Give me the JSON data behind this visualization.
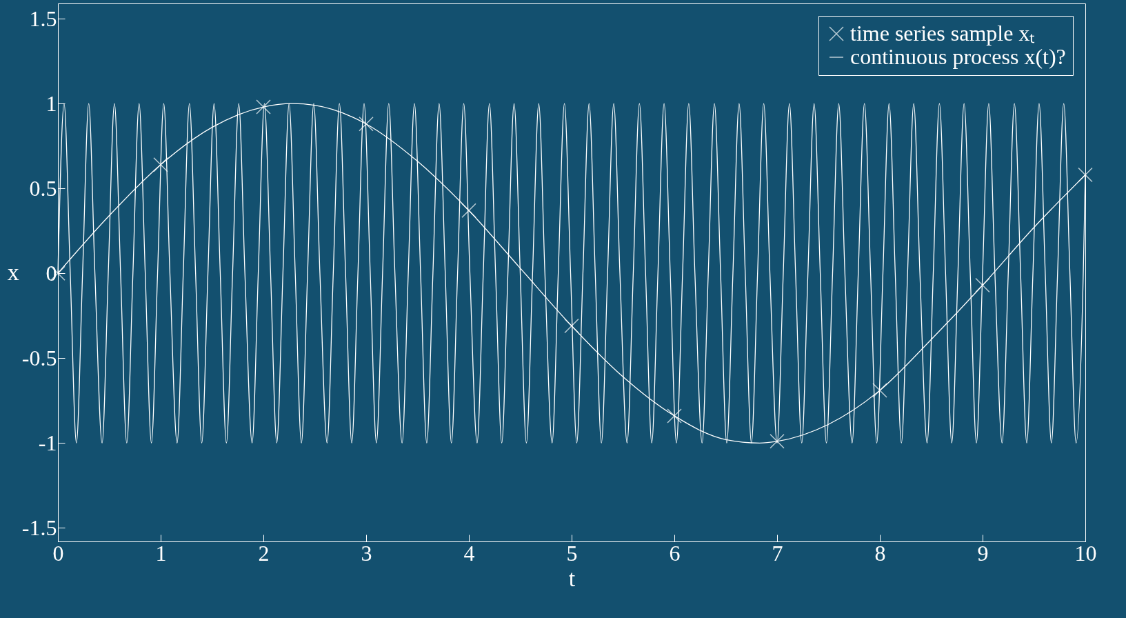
{
  "chart_data": {
    "type": "line",
    "xlabel": "t",
    "ylabel": "x",
    "xlim": [
      0,
      10
    ],
    "ylim": [
      -1.58,
      1.59
    ],
    "xticks": [
      0,
      1,
      2,
      3,
      4,
      5,
      6,
      7,
      8,
      9,
      10
    ],
    "yticks": [
      -1.5,
      -1,
      -0.5,
      0,
      0.5,
      1,
      1.5
    ],
    "grid": false,
    "legend": "top right",
    "series": [
      {
        "name": "time series sample xₜ",
        "type": "scatter",
        "marker": "cross",
        "color": "#ffffff",
        "x": [
          0,
          1,
          2,
          3,
          4,
          5,
          6,
          7,
          8,
          9,
          10
        ],
        "values": [
          0,
          0.64,
          0.98,
          0.88,
          0.37,
          -0.31,
          -0.84,
          -0.99,
          -0.69,
          -0.07,
          0.58
        ]
      },
      {
        "name": "continuous process x(t)?",
        "color": "#ffffff",
        "x": [
          0,
          0.06,
          0.12,
          0.18,
          0.24,
          0.3,
          0.36,
          0.43,
          0.49,
          0.55,
          0.61,
          0.67,
          0.73,
          0.79,
          0.85,
          0.91,
          0.97,
          1.03,
          1.09,
          1.16,
          1.22,
          1.28,
          1.34,
          1.4,
          1.46,
          1.52,
          1.58,
          1.64,
          1.7,
          1.76,
          1.82,
          1.89,
          1.95,
          2.01,
          2.07,
          2.13,
          2.19,
          2.25,
          2.31,
          2.37,
          2.43,
          2.49,
          2.55,
          2.62,
          2.68,
          2.74,
          2.8,
          2.86,
          2.92,
          2.98,
          3.04,
          3.1,
          3.16,
          3.22,
          3.28,
          3.35,
          3.41,
          3.47,
          3.53,
          3.59,
          3.65,
          3.71,
          3.77,
          3.83,
          3.89,
          3.95,
          4.01,
          4.08,
          4.14,
          4.2,
          4.26,
          4.32,
          4.38,
          4.44,
          4.5,
          4.56,
          4.62,
          4.68,
          4.74,
          4.81,
          4.87,
          4.93,
          4.99,
          5.05,
          5.11,
          5.17,
          5.23,
          5.29,
          5.35,
          5.41,
          5.47,
          5.54,
          5.6,
          5.66,
          5.72,
          5.78,
          5.84,
          5.9,
          5.96,
          6.02,
          6.08,
          6.14,
          6.2,
          6.27,
          6.33,
          6.39,
          6.45,
          6.51,
          6.57,
          6.63,
          6.69,
          6.75,
          6.81,
          6.87,
          6.93,
          7.0,
          7.06,
          7.12,
          7.18,
          7.24,
          7.3,
          7.36,
          7.42,
          7.48,
          7.54,
          7.6,
          7.66,
          7.73,
          7.79,
          7.85,
          7.91,
          7.97,
          8.03,
          8.09,
          8.15,
          8.21,
          8.27,
          8.33,
          8.39,
          8.46,
          8.52,
          8.58,
          8.64,
          8.7,
          8.76,
          8.82,
          8.88,
          8.94,
          9.0,
          9.06,
          9.12,
          9.19,
          9.25,
          9.31,
          9.37,
          9.43,
          9.49,
          9.55,
          9.61,
          9.67,
          9.73,
          9.79,
          9.85,
          9.91,
          9.98,
          10
        ],
        "values": [
          0,
          1,
          0,
          -1,
          0,
          1,
          0,
          -1,
          0,
          1,
          0,
          -1,
          0,
          1,
          0,
          -1,
          0,
          1,
          0,
          -1,
          0,
          1,
          0,
          -1,
          0,
          1,
          0,
          -1,
          0,
          1,
          0,
          -1,
          0,
          1,
          0,
          -1,
          0,
          1,
          0,
          -1,
          0,
          1,
          0,
          -1,
          0,
          1,
          0,
          -1,
          0,
          1,
          0,
          -1,
          0,
          1,
          0,
          -1,
          0,
          1,
          0,
          -1,
          0,
          1,
          0,
          -1,
          0,
          1,
          0,
          -1,
          0,
          1,
          0,
          -1,
          0,
          1,
          0,
          -1,
          0,
          1,
          0,
          -1,
          0,
          1,
          0,
          -1,
          0,
          1,
          0,
          -1,
          0,
          1,
          0,
          -1,
          0,
          1,
          0,
          -1,
          0,
          1,
          0,
          -1,
          0,
          1,
          0,
          -1,
          0,
          1,
          0,
          -1,
          0,
          1,
          0,
          -1,
          0,
          1,
          0,
          -1,
          0,
          1,
          0,
          -1,
          0,
          1,
          0,
          -1,
          0,
          1,
          0,
          -1,
          0,
          1,
          0,
          -1,
          0,
          1,
          0,
          -1,
          0,
          1,
          0,
          -1,
          0,
          1,
          0,
          -1,
          0,
          1,
          0,
          -1,
          0,
          1,
          0,
          -1,
          0,
          1,
          0,
          -1,
          0,
          1,
          0,
          -1,
          0,
          1,
          0,
          -1,
          0,
          0.58
        ]
      },
      {
        "color": "#ffffff",
        "x": [
          0,
          0.5,
          1,
          1.5,
          2,
          2.28,
          2.5,
          3,
          3.5,
          4,
          4.5,
          5,
          5.5,
          6,
          6.5,
          6.83,
          7,
          7.5,
          8,
          8.5,
          9,
          9.5,
          10
        ],
        "values": [
          0,
          0.34,
          0.64,
          0.86,
          0.98,
          1,
          0.99,
          0.88,
          0.66,
          0.37,
          0.03,
          -0.31,
          -0.61,
          -0.84,
          -0.98,
          -1,
          -0.99,
          -0.89,
          -0.69,
          -0.39,
          -0.07,
          0.27,
          0.58
        ]
      }
    ]
  }
}
